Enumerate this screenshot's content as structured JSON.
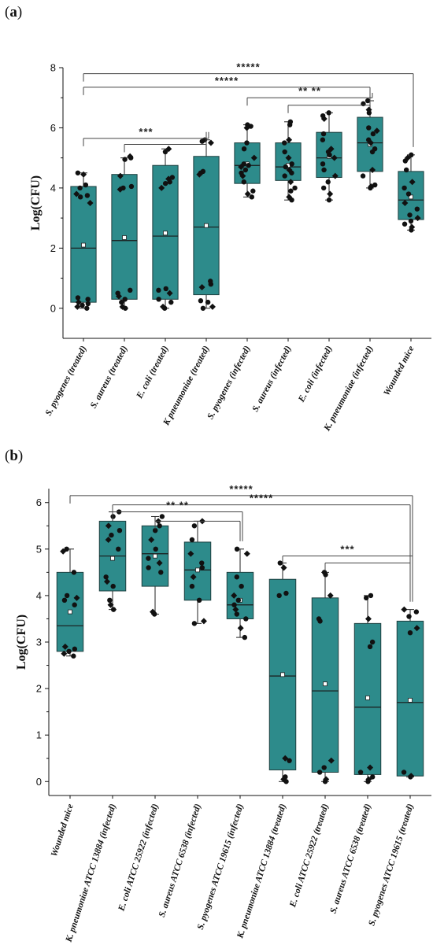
{
  "panels": [
    {
      "label": "a",
      "chart_data": {
        "type": "box",
        "ylabel": "Log(CFU)",
        "ylim": [
          -1,
          8
        ],
        "yticks": [
          0,
          2,
          4,
          6,
          8
        ],
        "box_color": "#2d8b8b",
        "categories": [
          "S. pyogenes (treated)",
          "S. aureus (treated)",
          "E. coli (treated)",
          "K pneumoniae (treated)",
          "S. pyogenes (infected)",
          "S. aureus (infected)",
          "E. coli (infected)",
          "K. pneumoniae (infected)",
          "Wounded mice"
        ],
        "boxes": [
          {
            "min": 0.0,
            "q1": 0.2,
            "median": 2.0,
            "mean": 2.1,
            "q3": 4.05,
            "max": 4.5
          },
          {
            "min": 0.0,
            "q1": 0.3,
            "median": 2.25,
            "mean": 2.35,
            "q3": 4.45,
            "max": 5.0
          },
          {
            "min": 0.0,
            "q1": 0.3,
            "median": 2.4,
            "mean": 2.5,
            "q3": 4.75,
            "max": 5.3
          },
          {
            "min": 0.0,
            "q1": 0.45,
            "median": 2.7,
            "mean": 2.75,
            "q3": 5.05,
            "max": 5.6
          },
          {
            "min": 3.7,
            "q1": 4.15,
            "median": 4.75,
            "mean": 4.8,
            "q3": 5.5,
            "max": 6.1
          },
          {
            "min": 3.6,
            "q1": 4.25,
            "median": 4.7,
            "mean": 4.75,
            "q3": 5.5,
            "max": 6.2
          },
          {
            "min": 3.6,
            "q1": 4.35,
            "median": 5.0,
            "mean": 5.05,
            "q3": 5.85,
            "max": 6.5
          },
          {
            "min": 4.0,
            "q1": 4.55,
            "median": 5.5,
            "mean": 5.45,
            "q3": 6.35,
            "max": 6.9
          },
          {
            "min": 2.6,
            "q1": 2.95,
            "median": 3.6,
            "mean": 3.7,
            "q3": 4.55,
            "max": 5.1
          }
        ],
        "points": [
          [
            0.0,
            0.05,
            0.1,
            0.15,
            0.2,
            0.3,
            0.35,
            3.5,
            3.7,
            3.75,
            3.8,
            4.0,
            4.1,
            4.45,
            4.5
          ],
          [
            0.0,
            0.05,
            0.2,
            0.3,
            0.4,
            0.5,
            0.6,
            3.95,
            4.0,
            4.05,
            4.4,
            4.95,
            5.0,
            5.05
          ],
          [
            0.0,
            0.05,
            0.2,
            0.3,
            0.5,
            0.6,
            0.65,
            4.0,
            4.15,
            4.2,
            4.3,
            4.35,
            5.2,
            5.3
          ],
          [
            0.0,
            0.05,
            0.2,
            0.25,
            0.7,
            0.8,
            0.9,
            4.45,
            4.5,
            4.55,
            5.5,
            5.55,
            5.6
          ],
          [
            3.7,
            3.8,
            3.9,
            4.2,
            4.4,
            4.5,
            4.6,
            4.7,
            4.75,
            4.8,
            5.0,
            5.3,
            5.5,
            6.0,
            6.05,
            6.1
          ],
          [
            3.6,
            3.7,
            3.9,
            4.0,
            4.2,
            4.4,
            4.5,
            4.6,
            4.7,
            4.8,
            5.0,
            5.2,
            5.5,
            5.6,
            6.1,
            6.2
          ],
          [
            3.6,
            3.8,
            4.0,
            4.2,
            4.4,
            4.6,
            4.8,
            5.0,
            5.1,
            5.2,
            5.3,
            5.6,
            5.8,
            6.3,
            6.4,
            6.5
          ],
          [
            4.0,
            4.05,
            4.1,
            4.4,
            4.6,
            5.2,
            5.3,
            5.5,
            5.6,
            5.8,
            5.9,
            6.0,
            6.5,
            6.6,
            6.8,
            6.9
          ],
          [
            2.6,
            2.7,
            2.8,
            2.9,
            3.0,
            3.1,
            3.3,
            3.5,
            3.8,
            4.0,
            4.2,
            4.6,
            4.9,
            5.0,
            5.1
          ]
        ],
        "significance": [
          {
            "from": 0,
            "to": [
              8
            ],
            "label": "*****",
            "level": 7.8
          },
          {
            "from": 0,
            "to": [
              7
            ],
            "label": "*****",
            "level": 7.35
          },
          {
            "from": 4,
            "to": [
              7
            ],
            "label": "** **",
            "level": 7.0
          },
          {
            "from": 5,
            "to": [
              7
            ],
            "label": "",
            "level": 6.75
          },
          {
            "from": 0,
            "to": [
              3
            ],
            "label": "***",
            "level": 5.65
          },
          {
            "from": 1,
            "to": [
              3
            ],
            "label": "",
            "level": 5.45
          }
        ]
      }
    },
    {
      "label": "b",
      "chart_data": {
        "type": "box",
        "ylabel": "Log(CFU)",
        "ylim": [
          -0.3,
          6.3
        ],
        "yticks": [
          0,
          1,
          2,
          3,
          4,
          5,
          6
        ],
        "box_color": "#2d8b8b",
        "categories": [
          "Wounded mice",
          "K. pneumoniae ATCC 13884 (infected)",
          "E. coli ATCC 25922 (infected)",
          "S. aureus ATCC 6538 (infected)",
          "S. pyogenes ATCC 19615 (infected)",
          "K. pneumoniae ATCC 13884 (treated)",
          "E. coli ATCC 25922 (treated)",
          "S. aureus ATCC 6538 (treated)",
          "S. pyogenes ATCC 19615 (treated)"
        ],
        "boxes": [
          {
            "min": 2.7,
            "q1": 2.8,
            "median": 3.35,
            "mean": 3.65,
            "q3": 4.5,
            "max": 5.0
          },
          {
            "min": 3.7,
            "q1": 4.1,
            "median": 4.85,
            "mean": 4.8,
            "q3": 5.6,
            "max": 5.8
          },
          {
            "min": 3.6,
            "q1": 4.2,
            "median": 4.9,
            "mean": 4.85,
            "q3": 5.5,
            "max": 5.7
          },
          {
            "min": 3.4,
            "q1": 3.9,
            "median": 4.55,
            "mean": 4.55,
            "q3": 5.15,
            "max": 5.6
          },
          {
            "min": 3.1,
            "q1": 3.5,
            "median": 3.8,
            "mean": 3.9,
            "q3": 4.5,
            "max": 5.0
          },
          {
            "min": 0.0,
            "q1": 0.25,
            "median": 2.27,
            "mean": 2.3,
            "q3": 4.35,
            "max": 4.7
          },
          {
            "min": 0.0,
            "q1": 0.2,
            "median": 1.95,
            "mean": 2.1,
            "q3": 3.95,
            "max": 4.5
          },
          {
            "min": 0.0,
            "q1": 0.15,
            "median": 1.6,
            "mean": 1.8,
            "q3": 3.4,
            "max": 4.0
          },
          {
            "min": 0.1,
            "q1": 0.12,
            "median": 1.7,
            "mean": 1.75,
            "q3": 3.45,
            "max": 3.7
          }
        ],
        "points": [
          [
            2.7,
            2.75,
            2.8,
            2.85,
            2.9,
            3.8,
            3.9,
            3.95,
            4.0,
            4.5,
            4.95,
            5.0
          ],
          [
            3.7,
            3.8,
            3.9,
            4.2,
            4.3,
            4.4,
            5.0,
            5.2,
            5.3,
            5.4,
            5.5,
            5.7,
            5.8
          ],
          [
            3.6,
            3.65,
            4.5,
            4.6,
            4.7,
            4.8,
            5.0,
            5.2,
            5.4,
            5.5,
            5.6,
            5.7
          ],
          [
            3.4,
            3.45,
            3.9,
            4.2,
            4.4,
            4.6,
            4.7,
            4.9,
            5.2,
            5.5,
            5.6
          ],
          [
            3.1,
            3.3,
            3.5,
            3.6,
            3.7,
            3.8,
            3.9,
            4.0,
            4.2,
            4.4,
            4.9,
            5.0
          ],
          [
            0.0,
            0.05,
            0.1,
            0.45,
            0.5,
            4.0,
            4.05,
            4.6,
            4.7
          ],
          [
            0.0,
            0.05,
            0.2,
            0.3,
            0.45,
            3.45,
            3.5,
            4.0,
            4.45,
            4.5
          ],
          [
            0.0,
            0.05,
            0.1,
            0.2,
            0.3,
            2.9,
            3.0,
            3.5,
            3.95,
            4.0
          ],
          [
            0.1,
            0.12,
            0.2,
            3.2,
            3.3,
            3.55,
            3.65,
            3.7
          ]
        ],
        "significance": [
          {
            "from": 0,
            "to": [
              8
            ],
            "label": "*****",
            "level": 6.15
          },
          {
            "from": 1,
            "to": [
              8
            ],
            "label": "*****",
            "level": 5.95
          },
          {
            "from": 1,
            "to": [
              4
            ],
            "label": "** **",
            "level": 5.8
          },
          {
            "from": 2,
            "to": [
              4
            ],
            "label": "",
            "level": 5.6
          },
          {
            "from": 5,
            "to": [
              8
            ],
            "label": "***",
            "level": 4.85
          },
          {
            "from": 6,
            "to": [
              8
            ],
            "label": "",
            "level": 4.7
          }
        ]
      }
    }
  ]
}
